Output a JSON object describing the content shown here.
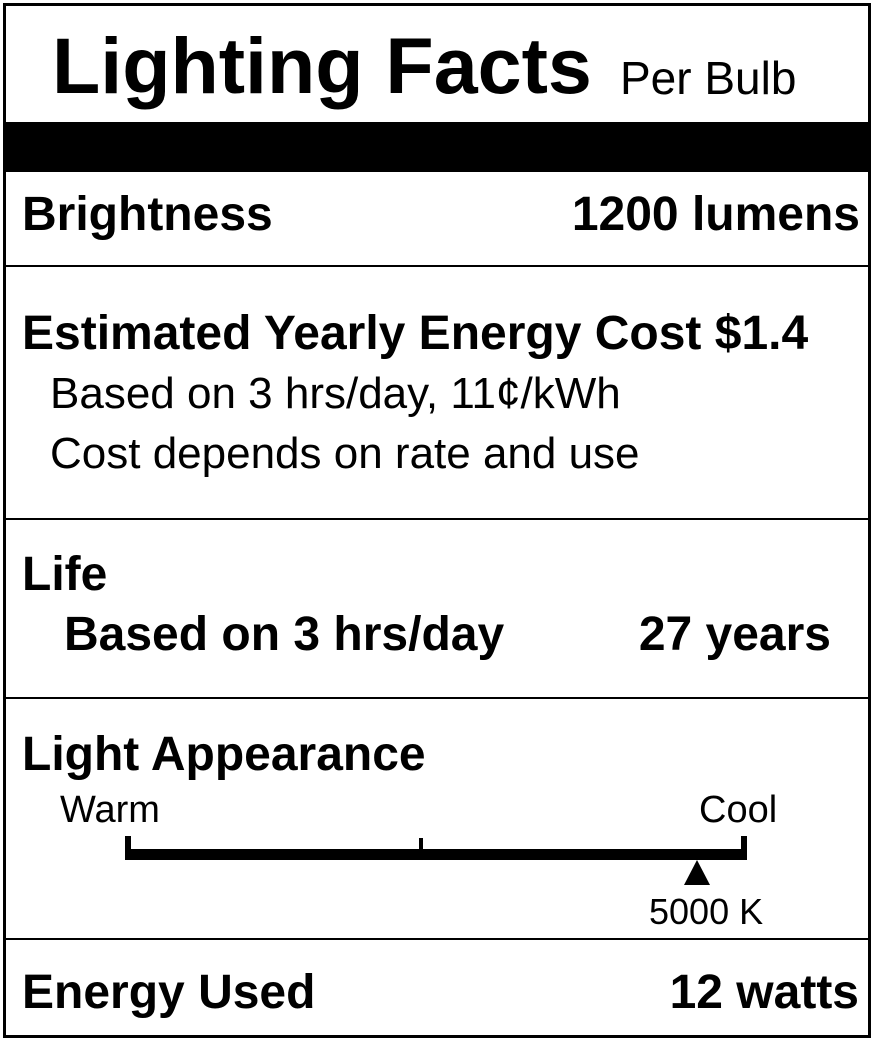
{
  "header": {
    "title": "Lighting Facts",
    "subtitle": "Per Bulb"
  },
  "brightness": {
    "label": "Brightness",
    "value": "1200 lumens"
  },
  "cost": {
    "label": "Estimated Yearly Energy Cost $1.4",
    "line1": "Based on 3 hrs/day, 11¢/kWh",
    "line2": "Cost depends on rate and use"
  },
  "life": {
    "label": "Life",
    "basis": "Based on 3 hrs/day",
    "value": "27 years"
  },
  "appearance": {
    "label": "Light Appearance",
    "warm_label": "Warm",
    "cool_label": "Cool",
    "marker_label": "5000 K",
    "marker_position": 0.92
  },
  "energy": {
    "label": "Energy Used",
    "value": "12 watts"
  }
}
